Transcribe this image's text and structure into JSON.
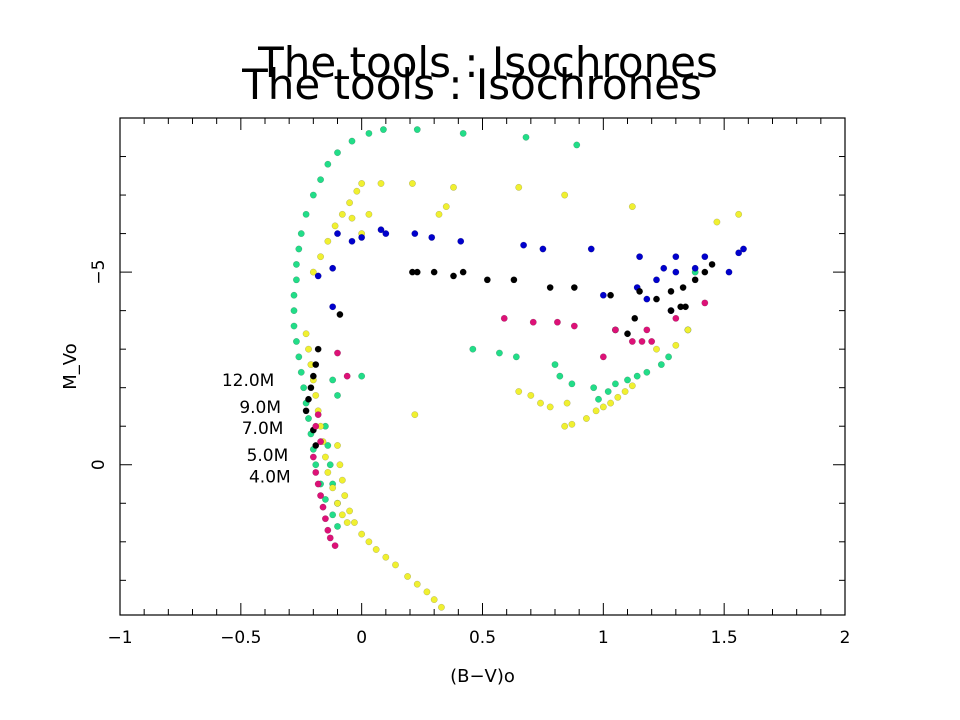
{
  "slide": {
    "title": "The tools : Isochrones",
    "title_shadow": "The tools : Isochrones"
  },
  "colors": {
    "green": "#22dd88",
    "yellow": "#f0f030",
    "blue": "#0000cc",
    "black": "#000000",
    "magenta": "#dd1177"
  },
  "chart_data": {
    "type": "scatter",
    "xlabel": "(B−V)o",
    "ylabel": "M_Vo",
    "xlim": [
      -1,
      2
    ],
    "ylim": [
      3.9,
      -9.0
    ],
    "y_inverted": true,
    "x_ticks": [
      -1,
      -0.5,
      0,
      0.5,
      1,
      1.5,
      2
    ],
    "x_tick_labels": [
      "−1",
      "−0.5",
      "0",
      "0.5",
      "1",
      "1.5",
      "2"
    ],
    "y_ticks": [
      0,
      -5
    ],
    "y_tick_labels": [
      "0",
      "−5"
    ],
    "annotations": [
      {
        "text": "12.0M",
        "x": -0.47,
        "y": -2.2
      },
      {
        "text": "9.0M",
        "x": -0.42,
        "y": -1.5
      },
      {
        "text": "7.0M",
        "x": -0.41,
        "y": -0.95
      },
      {
        "text": "5.0M",
        "x": -0.39,
        "y": -0.25
      },
      {
        "text": "4.0M",
        "x": -0.38,
        "y": 0.3
      }
    ],
    "series": [
      {
        "color": "#22dd88",
        "points": [
          [
            -0.27,
            -5.2
          ],
          [
            -0.27,
            -4.8
          ],
          [
            -0.28,
            -4.4
          ],
          [
            -0.28,
            -4.0
          ],
          [
            -0.28,
            -3.6
          ],
          [
            -0.27,
            -3.2
          ],
          [
            -0.26,
            -2.8
          ],
          [
            -0.25,
            -2.4
          ],
          [
            -0.24,
            -2.0
          ],
          [
            -0.23,
            -1.6
          ],
          [
            -0.22,
            -1.2
          ],
          [
            -0.21,
            -0.8
          ],
          [
            -0.2,
            -0.4
          ],
          [
            -0.19,
            0.0
          ],
          [
            -0.17,
            0.5
          ],
          [
            -0.15,
            0.9
          ],
          [
            -0.12,
            1.3
          ],
          [
            -0.1,
            1.6
          ],
          [
            -0.15,
            -1.0
          ],
          [
            -0.14,
            -0.5
          ],
          [
            -0.13,
            0.0
          ],
          [
            -0.12,
            0.5
          ],
          [
            -0.1,
            1.0
          ],
          [
            -0.26,
            -5.6
          ],
          [
            -0.25,
            -6.0
          ],
          [
            -0.23,
            -6.5
          ],
          [
            -0.2,
            -7.0
          ],
          [
            -0.17,
            -7.4
          ],
          [
            -0.14,
            -7.8
          ],
          [
            -0.1,
            -8.1
          ],
          [
            -0.04,
            -8.4
          ],
          [
            0.03,
            -8.6
          ],
          [
            0.09,
            -8.7
          ],
          [
            0.23,
            -8.7
          ],
          [
            0.42,
            -8.6
          ],
          [
            0.68,
            -8.5
          ],
          [
            0.89,
            -8.3
          ],
          [
            0.46,
            -3.0
          ],
          [
            0.57,
            -2.9
          ],
          [
            0.64,
            -2.8
          ],
          [
            0.8,
            -2.6
          ],
          [
            0.82,
            -2.3
          ],
          [
            0.87,
            -2.1
          ],
          [
            0.96,
            -2.0
          ],
          [
            0.98,
            -1.7
          ],
          [
            1.02,
            -1.9
          ],
          [
            1.05,
            -2.1
          ],
          [
            1.1,
            -2.2
          ],
          [
            1.14,
            -2.3
          ],
          [
            1.18,
            -2.4
          ],
          [
            1.24,
            -2.6
          ],
          [
            1.27,
            -2.8
          ],
          [
            1.35,
            -3.5
          ],
          [
            1.38,
            -5.0
          ],
          [
            -0.12,
            -2.2
          ],
          [
            -0.1,
            -1.8
          ],
          [
            0.0,
            -2.3
          ]
        ]
      },
      {
        "color": "#f0f030",
        "points": [
          [
            -0.23,
            -3.4
          ],
          [
            -0.22,
            -3.0
          ],
          [
            -0.21,
            -2.6
          ],
          [
            -0.2,
            -2.2
          ],
          [
            -0.19,
            -1.8
          ],
          [
            -0.18,
            -1.4
          ],
          [
            -0.17,
            -1.0
          ],
          [
            -0.16,
            -0.6
          ],
          [
            -0.15,
            -0.2
          ],
          [
            -0.14,
            0.2
          ],
          [
            -0.12,
            0.6
          ],
          [
            -0.1,
            1.0
          ],
          [
            -0.08,
            1.3
          ],
          [
            -0.06,
            1.5
          ],
          [
            -0.1,
            -0.5
          ],
          [
            -0.09,
            0.0
          ],
          [
            -0.08,
            0.4
          ],
          [
            -0.07,
            0.8
          ],
          [
            -0.05,
            1.2
          ],
          [
            -0.03,
            1.5
          ],
          [
            0.0,
            1.8
          ],
          [
            0.03,
            2.0
          ],
          [
            0.06,
            2.2
          ],
          [
            0.1,
            2.4
          ],
          [
            0.14,
            2.6
          ],
          [
            0.19,
            2.9
          ],
          [
            0.23,
            3.1
          ],
          [
            0.27,
            3.3
          ],
          [
            0.3,
            3.5
          ],
          [
            0.33,
            3.7
          ],
          [
            -0.2,
            -5.0
          ],
          [
            -0.17,
            -5.4
          ],
          [
            -0.14,
            -5.8
          ],
          [
            -0.11,
            -6.2
          ],
          [
            -0.08,
            -6.5
          ],
          [
            -0.05,
            -6.8
          ],
          [
            -0.02,
            -7.1
          ],
          [
            0.0,
            -7.3
          ],
          [
            0.08,
            -7.3
          ],
          [
            0.21,
            -7.3
          ],
          [
            0.38,
            -7.2
          ],
          [
            0.65,
            -7.2
          ],
          [
            0.84,
            -7.0
          ],
          [
            1.12,
            -6.7
          ],
          [
            1.47,
            -6.3
          ],
          [
            1.56,
            -6.5
          ],
          [
            0.22,
            -1.3
          ],
          [
            0.65,
            -1.9
          ],
          [
            0.7,
            -1.8
          ],
          [
            0.74,
            -1.6
          ],
          [
            0.78,
            -1.5
          ],
          [
            0.85,
            -1.6
          ],
          [
            0.84,
            -1.0
          ],
          [
            0.87,
            -1.05
          ],
          [
            0.93,
            -1.2
          ],
          [
            0.97,
            -1.4
          ],
          [
            1.0,
            -1.5
          ],
          [
            1.03,
            -1.6
          ],
          [
            1.06,
            -1.75
          ],
          [
            1.09,
            -1.9
          ],
          [
            1.12,
            -2.05
          ],
          [
            1.22,
            -3.0
          ],
          [
            1.3,
            -3.1
          ],
          [
            1.35,
            -3.5
          ],
          [
            -0.04,
            -6.4
          ],
          [
            0.0,
            -6.0
          ],
          [
            0.03,
            -6.5
          ],
          [
            0.35,
            -6.7
          ],
          [
            0.32,
            -6.5
          ]
        ]
      },
      {
        "color": "#0000cc",
        "points": [
          [
            -0.1,
            -6.0
          ],
          [
            -0.04,
            -5.8
          ],
          [
            0.0,
            -5.9
          ],
          [
            0.08,
            -6.1
          ],
          [
            0.1,
            -6.0
          ],
          [
            0.22,
            -6.0
          ],
          [
            0.29,
            -5.9
          ],
          [
            0.41,
            -5.8
          ],
          [
            0.67,
            -5.7
          ],
          [
            0.75,
            -5.6
          ],
          [
            0.95,
            -5.6
          ],
          [
            1.15,
            -5.4
          ],
          [
            1.3,
            -5.4
          ],
          [
            1.42,
            -5.4
          ],
          [
            1.56,
            -5.5
          ],
          [
            1.58,
            -5.6
          ],
          [
            1.25,
            -5.1
          ],
          [
            1.3,
            -5.0
          ],
          [
            1.38,
            -5.1
          ],
          [
            1.52,
            -5.0
          ],
          [
            1.22,
            -4.8
          ],
          [
            1.14,
            -4.6
          ],
          [
            1.18,
            -4.3
          ],
          [
            1.0,
            -4.4
          ],
          [
            1.28,
            -4.0
          ],
          [
            -0.12,
            -4.1
          ],
          [
            -0.18,
            -4.9
          ],
          [
            -0.12,
            -5.1
          ]
        ]
      },
      {
        "color": "#000000",
        "points": [
          [
            -0.23,
            -1.4
          ],
          [
            -0.22,
            -1.7
          ],
          [
            -0.21,
            -2.0
          ],
          [
            -0.2,
            -2.3
          ],
          [
            -0.19,
            -2.6
          ],
          [
            -0.18,
            -3.0
          ],
          [
            -0.09,
            -3.9
          ],
          [
            0.21,
            -5.0
          ],
          [
            0.23,
            -5.0
          ],
          [
            0.3,
            -5.0
          ],
          [
            0.38,
            -4.9
          ],
          [
            0.42,
            -5.0
          ],
          [
            0.52,
            -4.8
          ],
          [
            0.63,
            -4.8
          ],
          [
            0.78,
            -4.6
          ],
          [
            0.88,
            -4.6
          ],
          [
            1.03,
            -4.4
          ],
          [
            1.15,
            -4.5
          ],
          [
            1.22,
            -4.3
          ],
          [
            1.28,
            -4.5
          ],
          [
            1.33,
            -4.6
          ],
          [
            1.38,
            -4.8
          ],
          [
            1.42,
            -5.0
          ],
          [
            1.45,
            -5.2
          ],
          [
            1.34,
            -4.1
          ],
          [
            1.32,
            -4.1
          ],
          [
            1.28,
            -4.0
          ],
          [
            1.13,
            -3.8
          ],
          [
            1.1,
            -3.4
          ],
          [
            1.05,
            -3.5
          ],
          [
            -0.2,
            -0.9
          ],
          [
            -0.19,
            -0.5
          ]
        ]
      },
      {
        "color": "#dd1177",
        "points": [
          [
            -0.2,
            -0.2
          ],
          [
            -0.19,
            0.2
          ],
          [
            -0.18,
            0.5
          ],
          [
            -0.17,
            0.8
          ],
          [
            -0.16,
            1.1
          ],
          [
            -0.15,
            1.4
          ],
          [
            -0.14,
            1.7
          ],
          [
            -0.13,
            1.9
          ],
          [
            -0.11,
            2.1
          ],
          [
            -0.17,
            -0.6
          ],
          [
            -0.18,
            -1.3
          ],
          [
            -0.1,
            -2.9
          ],
          [
            -0.06,
            -2.3
          ],
          [
            0.59,
            -3.8
          ],
          [
            0.71,
            -3.7
          ],
          [
            0.81,
            -3.7
          ],
          [
            0.88,
            -3.6
          ],
          [
            1.05,
            -3.5
          ],
          [
            1.12,
            -3.2
          ],
          [
            1.16,
            -3.2
          ],
          [
            1.18,
            -3.5
          ],
          [
            1.2,
            -3.2
          ],
          [
            1.3,
            -3.8
          ],
          [
            1.42,
            -4.2
          ],
          [
            1.0,
            -2.8
          ],
          [
            -0.19,
            -1.0
          ]
        ]
      }
    ]
  }
}
